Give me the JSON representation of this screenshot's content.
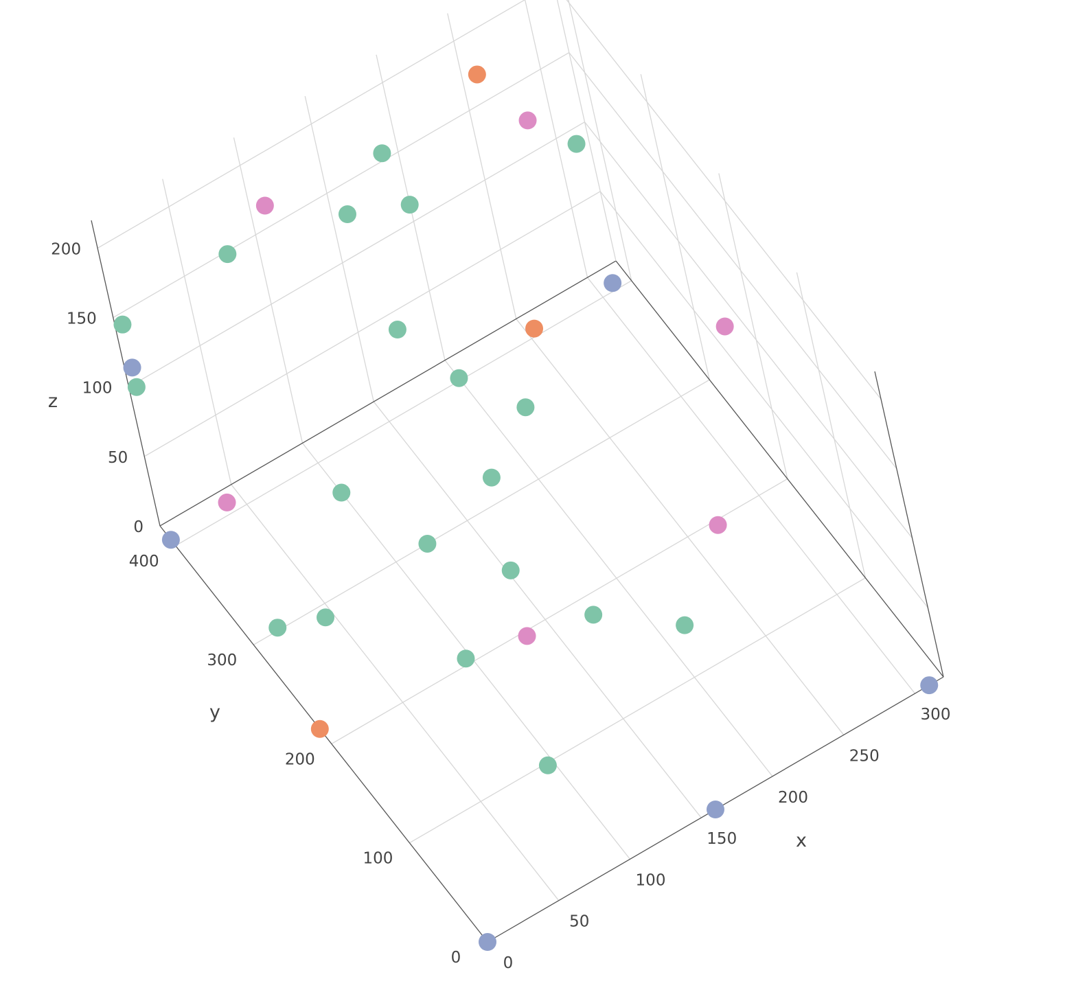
{
  "chart_data": {
    "type": "scatter",
    "dimensions": 3,
    "grid": true,
    "legend": "none",
    "xlabel": "x",
    "ylabel": "y",
    "zlabel": "z",
    "xlim": [
      0,
      320
    ],
    "ylim": [
      0,
      420
    ],
    "zlim": [
      0,
      220
    ],
    "x_ticks": [
      "0",
      "50",
      "100",
      "150",
      "200",
      "250",
      "300"
    ],
    "y_ticks": [
      "0",
      "100",
      "200",
      "300",
      "400"
    ],
    "z_ticks": [
      "0",
      "50",
      "100",
      "150",
      "200"
    ],
    "colors": {
      "green": "#7fc4a8",
      "orange": "#ee8e62",
      "blue": "#8f9fca",
      "pink": "#dd8cc4"
    },
    "points": [
      {
        "x": 0,
        "y": 0,
        "z": 0,
        "color": "blue"
      },
      {
        "x": 160,
        "y": 0,
        "z": 0,
        "color": "blue"
      },
      {
        "x": 310,
        "y": 0,
        "z": 0,
        "color": "blue"
      },
      {
        "x": 0,
        "y": 406,
        "z": 0,
        "color": "blue"
      },
      {
        "x": 310,
        "y": 406,
        "z": 0,
        "color": "blue"
      },
      {
        "x": 0,
        "y": 406,
        "z": 124,
        "color": "blue"
      },
      {
        "x": 0,
        "y": 215,
        "z": 0,
        "color": "orange"
      },
      {
        "x": 255,
        "y": 406,
        "z": 0,
        "color": "orange"
      },
      {
        "x": 255,
        "y": 406,
        "z": 183,
        "color": "orange"
      },
      {
        "x": 96,
        "y": 98,
        "z": 0,
        "color": "green"
      },
      {
        "x": 97,
        "y": 205,
        "z": 0,
        "color": "green"
      },
      {
        "x": 175,
        "y": 184,
        "z": 0,
        "color": "green"
      },
      {
        "x": 215,
        "y": 140,
        "z": 0,
        "color": "green"
      },
      {
        "x": 152,
        "y": 248,
        "z": 0,
        "color": "green"
      },
      {
        "x": 178,
        "y": 320,
        "z": 0,
        "color": "green"
      },
      {
        "x": 221,
        "y": 355,
        "z": 0,
        "color": "green"
      },
      {
        "x": 200,
        "y": 402,
        "z": 0,
        "color": "green"
      },
      {
        "x": 122,
        "y": 300,
        "z": 0,
        "color": "green"
      },
      {
        "x": 45,
        "y": 290,
        "z": 0,
        "color": "green"
      },
      {
        "x": 100,
        "y": 370,
        "z": 0,
        "color": "green"
      },
      {
        "x": 170,
        "y": 406,
        "z": 50,
        "color": "green"
      },
      {
        "x": 307,
        "y": 406,
        "z": 102,
        "color": "green"
      },
      {
        "x": 0,
        "y": 406,
        "z": 155,
        "color": "green"
      },
      {
        "x": 75,
        "y": 406,
        "z": 161,
        "color": "green"
      },
      {
        "x": 155,
        "y": 406,
        "z": 142,
        "color": "green"
      },
      {
        "x": 195,
        "y": 406,
        "z": 125,
        "color": "green"
      },
      {
        "x": 185,
        "y": 406,
        "z": 168,
        "color": "green"
      },
      {
        "x": 0,
        "y": 406,
        "z": 110,
        "color": "green"
      },
      {
        "x": 0,
        "y": 250,
        "z": 48,
        "color": "green"
      },
      {
        "x": 40,
        "y": 406,
        "z": 3,
        "color": "pink"
      },
      {
        "x": 135,
        "y": 196,
        "z": 0,
        "color": "pink"
      },
      {
        "x": 269,
        "y": 196,
        "z": 0,
        "color": "pink"
      },
      {
        "x": 310,
        "y": 222,
        "z": 100,
        "color": "pink"
      },
      {
        "x": 280,
        "y": 406,
        "z": 135,
        "color": "pink"
      },
      {
        "x": 105,
        "y": 406,
        "z": 178,
        "color": "pink"
      }
    ]
  }
}
